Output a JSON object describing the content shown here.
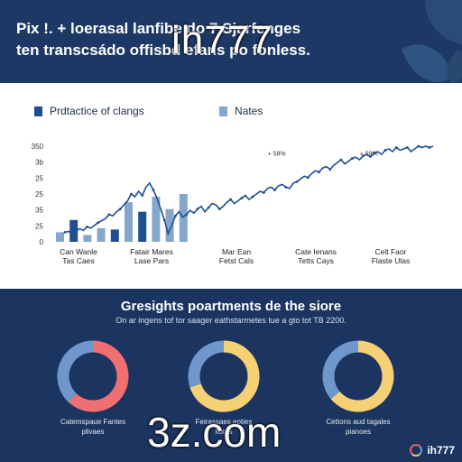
{
  "header": {
    "line1": "Pix !. + loerasal lanfibe do 7 Sjarfenges",
    "line2": "ten transcsádo offisbd efans po fonless."
  },
  "watermarks": {
    "top": "ih777",
    "bottom": "3z.com",
    "corner": "ih777"
  },
  "colors": {
    "background": "#1c3560",
    "panel": "#ffffff",
    "dark_series": "#1f4f92",
    "light_series": "#86a6cc",
    "line": "#1f4f92",
    "donut_blue": "#6f97cc",
    "donut_coral": "#f07072",
    "donut_yellow": "#f5d074"
  },
  "chart_data": [
    {
      "type": "bar",
      "legend": [
        {
          "name": "Prdtactice of clangs",
          "color": "#1f4f92"
        },
        {
          "name": "Nates",
          "color": "#86a6cc"
        }
      ],
      "yticks": [
        "350",
        "3b",
        "25",
        "25",
        "35",
        "25",
        "0"
      ],
      "ylim": [
        0,
        350
      ],
      "categories": [
        {
          "line1": "Can Wanle",
          "line2": "Tas Caes"
        },
        {
          "line1": "Fatair Mares",
          "line2": "Lase Pars"
        },
        {
          "line1": "Mar Ean",
          "line2": "Fetst Cals"
        },
        {
          "line1": "Cate Ienans",
          "line2": "Tetts Cays"
        },
        {
          "line1": "Celt Faor",
          "line2": "Flaste Ulas"
        }
      ],
      "bars": [
        {
          "value": 35,
          "series": "light"
        },
        {
          "value": 80,
          "series": "dark"
        },
        {
          "value": 25,
          "series": "light"
        },
        {
          "value": 50,
          "series": "light"
        },
        {
          "value": 45,
          "series": "dark"
        },
        {
          "value": 145,
          "series": "light"
        },
        {
          "value": 110,
          "series": "dark"
        },
        {
          "value": 165,
          "series": "light"
        },
        {
          "value": 120,
          "series": "light"
        },
        {
          "value": 175,
          "series": "light"
        }
      ],
      "line": {
        "x": [
          0.3,
          0.34,
          0.38,
          0.42,
          0.46,
          0.5,
          0.54,
          0.58,
          0.62,
          0.66,
          0.7,
          0.74,
          0.78,
          0.82,
          0.86,
          0.9,
          0.94,
          0.98,
          1.02,
          1.06,
          1.1,
          1.14,
          1.18,
          1.22,
          1.26,
          1.3,
          1.34,
          1.38,
          1.42,
          1.46,
          1.5,
          1.54,
          1.58,
          1.62,
          1.66,
          1.7,
          1.74,
          1.78,
          1.82,
          1.86,
          1.9,
          1.94,
          1.98,
          2.02,
          2.06,
          2.1,
          2.14,
          2.18,
          2.22,
          2.26,
          2.3,
          2.34,
          2.38,
          2.42,
          2.46,
          2.5,
          2.54,
          2.58,
          2.62,
          2.66,
          2.7,
          2.74,
          2.78,
          2.82,
          2.86,
          2.9,
          2.94,
          2.98,
          3.02,
          3.06,
          3.1,
          3.14,
          3.18,
          3.22,
          3.26,
          3.3,
          3.34,
          3.38,
          3.42,
          3.46,
          3.5,
          3.54,
          3.58,
          3.62,
          3.66,
          3.7,
          3.74,
          3.78,
          3.82,
          3.86,
          3.9,
          3.94,
          3.98,
          4.02,
          4.06,
          4.1,
          4.14,
          4.18,
          4.22,
          4.26,
          4.3
        ],
        "y": [
          35,
          38,
          30,
          40,
          48,
          42,
          55,
          50,
          60,
          70,
          78,
          85,
          100,
          95,
          110,
          120,
          135,
          150,
          175,
          165,
          185,
          170,
          200,
          215,
          190,
          160,
          120,
          80,
          30,
          60,
          95,
          110,
          90,
          100,
          115,
          105,
          120,
          130,
          110,
          125,
          140,
          135,
          120,
          130,
          145,
          155,
          140,
          150,
          160,
          170,
          155,
          165,
          175,
          185,
          180,
          195,
          200,
          190,
          205,
          210,
          200,
          195,
          215,
          220,
          230,
          240,
          235,
          250,
          260,
          255,
          270,
          275,
          265,
          280,
          290,
          300,
          285,
          295,
          305,
          310,
          300,
          315,
          320,
          310,
          325,
          330,
          320,
          335,
          340,
          330,
          345,
          335,
          340,
          345,
          330,
          340,
          350,
          345,
          350,
          345,
          350
        ]
      },
      "annotations": [
        {
          "text": "+ 58%",
          "x": 2.6,
          "y": 315
        },
        {
          "text": "+ 59%",
          "x": 3.6,
          "y": 315
        }
      ]
    },
    {
      "type": "pie",
      "title": "Gresights poartments de the siore",
      "subtitle": "On ar ingens tof tor saager eathstarmetes tue a gto tot TB 2200.",
      "charts": [
        {
          "label": {
            "line1": "Catemspaue Fantes",
            "line2": "plivaes"
          },
          "slices": [
            {
              "value": 62,
              "color": "#f07072"
            },
            {
              "value": 38,
              "color": "#6f97cc"
            }
          ]
        },
        {
          "label": {
            "line1": "Feirassaes eoties",
            "line2": "fiotes"
          },
          "slices": [
            {
              "value": 70,
              "color": "#f5d074"
            },
            {
              "value": 30,
              "color": "#6f97cc"
            }
          ]
        },
        {
          "label": {
            "line1": "Cettons aud tagales",
            "line2": "pianoes"
          },
          "slices": [
            {
              "value": 64,
              "color": "#f5d074"
            },
            {
              "value": 36,
              "color": "#6f97cc"
            }
          ]
        }
      ]
    }
  ]
}
